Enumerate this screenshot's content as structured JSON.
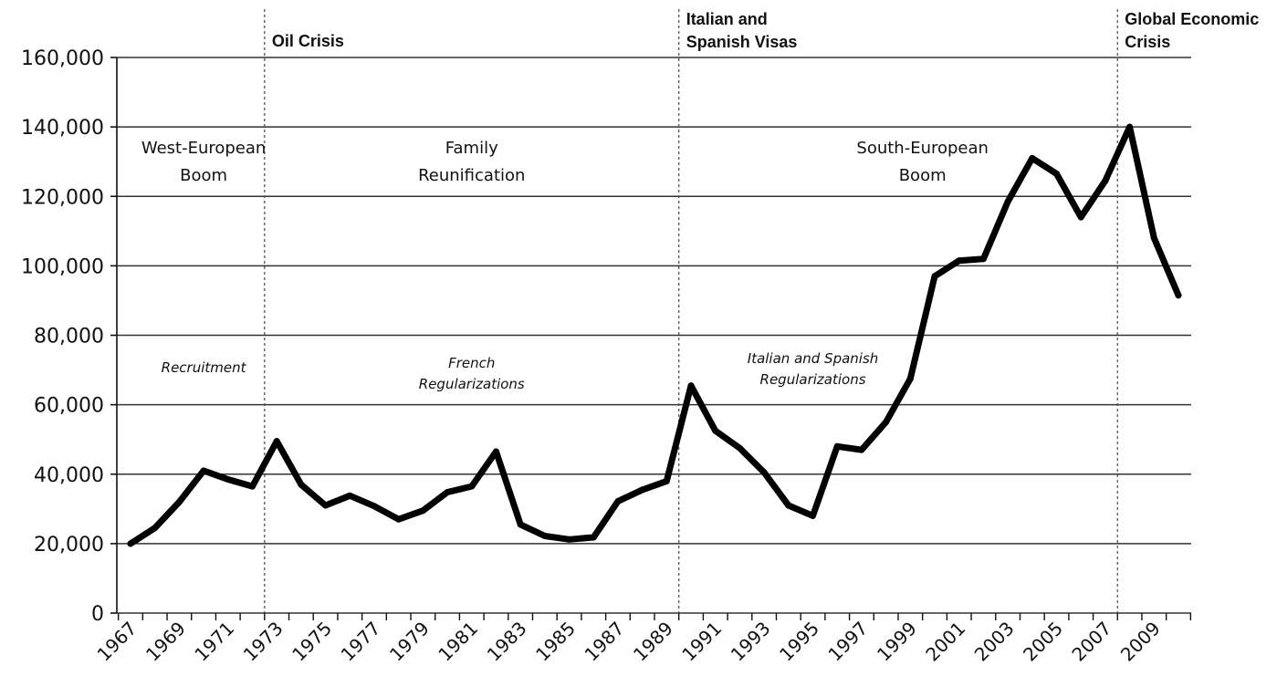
{
  "chart_data": {
    "type": "line",
    "title": "",
    "xlabel": "",
    "ylabel": "",
    "ylim": [
      0,
      160000
    ],
    "yticks": [
      0,
      20000,
      40000,
      60000,
      80000,
      100000,
      120000,
      140000,
      160000
    ],
    "ytick_labels": [
      "0",
      "20,000",
      "40,000",
      "60,000",
      "80,000",
      "100,000",
      "120,000",
      "140,000",
      "160,000"
    ],
    "xtick_labels": [
      "1967",
      "1969",
      "1971",
      "1973",
      "1975",
      "1977",
      "1979",
      "1981",
      "1983",
      "1985",
      "1987",
      "1989",
      "1991",
      "1993",
      "1995",
      "1997",
      "1999",
      "2001",
      "2003",
      "2005",
      "2007",
      "2009"
    ],
    "grid": "horizontal",
    "series": [
      {
        "x": [
          1967,
          1968,
          1969,
          1970,
          1971,
          1972,
          1973,
          1974,
          1975,
          1976,
          1977,
          1978,
          1979,
          1980,
          1981,
          1982,
          1983,
          1984,
          1985,
          1986,
          1987,
          1988,
          1989,
          1990,
          1991,
          1992,
          1993,
          1994,
          1995,
          1996,
          1997,
          1998,
          1999,
          2000,
          2001,
          2002,
          2003,
          2004,
          2005,
          2006,
          2007,
          2008,
          2009,
          2010
        ],
        "values": [
          20000,
          24500,
          32000,
          41000,
          38500,
          36500,
          49500,
          37000,
          31000,
          33800,
          30800,
          27000,
          29500,
          34800,
          36500,
          46500,
          25500,
          22200,
          21200,
          21800,
          32200,
          35500,
          38000,
          65500,
          52500,
          47500,
          40500,
          31000,
          28000,
          48000,
          47000,
          55000,
          67500,
          97000,
          101500,
          102000,
          118500,
          131000,
          126500,
          114000,
          124500,
          140000,
          108000,
          91500
        ]
      }
    ],
    "event_lines": [
      {
        "x": 1972.5,
        "label_lines": [
          "Oil Crisis"
        ]
      },
      {
        "x": 1989.5,
        "label_lines": [
          "Italian and",
          "Spanish Visas"
        ]
      },
      {
        "x": 2007.5,
        "label_lines": [
          "Global Economic",
          "Crisis"
        ]
      }
    ],
    "period_labels": [
      {
        "lines": [
          "West-European",
          "Boom"
        ]
      },
      {
        "lines": [
          "Family",
          "Reunification"
        ]
      },
      {
        "lines": [
          "South-European",
          "Boom"
        ]
      }
    ],
    "policy_labels": [
      {
        "lines": [
          "Recruitment"
        ]
      },
      {
        "lines": [
          "French",
          "Regularizations"
        ]
      },
      {
        "lines": [
          "Italian and Spanish",
          "Regularizations"
        ]
      }
    ],
    "colors": {
      "line": "#000000",
      "grid": "#333333",
      "event_line": "#555555"
    }
  }
}
